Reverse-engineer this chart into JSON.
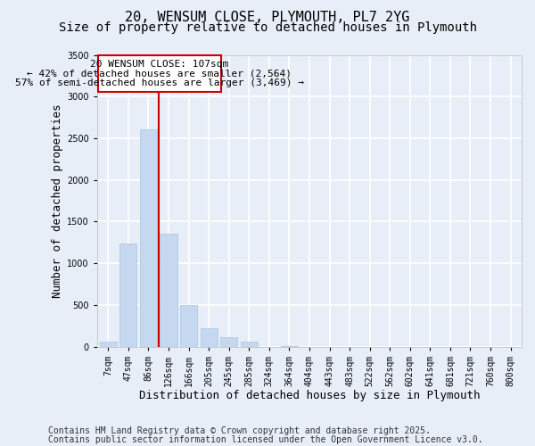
{
  "title_line1": "20, WENSUM CLOSE, PLYMOUTH, PL7 2YG",
  "title_line2": "Size of property relative to detached houses in Plymouth",
  "xlabel": "Distribution of detached houses by size in Plymouth",
  "ylabel": "Number of detached properties",
  "categories": [
    "7sqm",
    "47sqm",
    "86sqm",
    "126sqm",
    "166sqm",
    "205sqm",
    "245sqm",
    "285sqm",
    "324sqm",
    "364sqm",
    "404sqm",
    "443sqm",
    "483sqm",
    "522sqm",
    "562sqm",
    "602sqm",
    "641sqm",
    "681sqm",
    "721sqm",
    "760sqm",
    "800sqm"
  ],
  "values": [
    55,
    1240,
    2610,
    1350,
    500,
    215,
    115,
    55,
    0,
    10,
    0,
    0,
    0,
    0,
    0,
    0,
    0,
    0,
    0,
    0,
    0
  ],
  "bar_color": "#c5d8f0",
  "bar_edgecolor": "#a8c4e0",
  "red_line_x": 2.5,
  "annotation_line1": "20 WENSUM CLOSE: 107sqm",
  "annotation_line2": "← 42% of detached houses are smaller (2,564)",
  "annotation_line3": "57% of semi-detached houses are larger (3,469) →",
  "ylim_max": 3500,
  "yticks": [
    0,
    500,
    1000,
    1500,
    2000,
    2500,
    3000,
    3500
  ],
  "footer_line1": "Contains HM Land Registry data © Crown copyright and database right 2025.",
  "footer_line2": "Contains public sector information licensed under the Open Government Licence v3.0.",
  "bg_color": "#e8eef8",
  "grid_color": "#ffffff",
  "red_line_color": "#cc0000",
  "ann_box_edge": "#cc0000",
  "ann_box_face": "#ffffff",
  "title_fs": 11,
  "subtitle_fs": 10,
  "tick_fs": 7,
  "label_fs": 9,
  "footer_fs": 7,
  "ann_fs": 8
}
